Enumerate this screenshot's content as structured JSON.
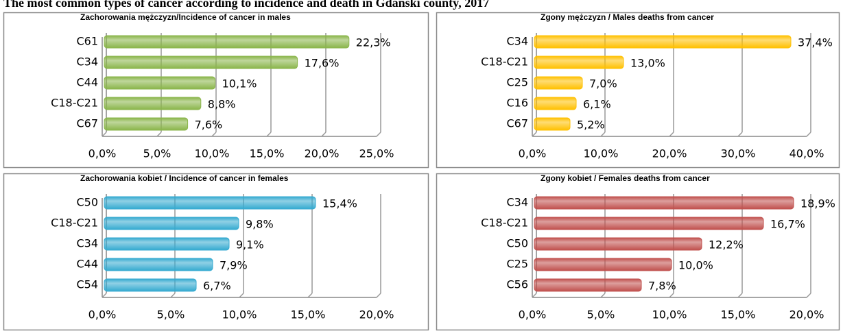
{
  "title": "The most common types of cancer according to incidence and death in Gdański county, 2017",
  "chart_data": [
    {
      "type": "bar",
      "title": "Zachorowania mężczyzn/Incidence of cancer in males",
      "categories": [
        "C61",
        "C34",
        "C44",
        "C18-C21",
        "C67"
      ],
      "values": [
        22.3,
        17.6,
        10.1,
        8.8,
        7.6
      ],
      "value_labels": [
        "22,3%",
        "17,6%",
        "10,1%",
        "8,8%",
        "7,6%"
      ],
      "color": "#8ab54a",
      "xlim": [
        0,
        25
      ],
      "xticks": [
        {
          "value": 0,
          "label": "0,0%"
        },
        {
          "value": 5,
          "label": "5,0%"
        },
        {
          "value": 10,
          "label": "10,0%"
        },
        {
          "value": 15,
          "label": "15,0%"
        },
        {
          "value": 20,
          "label": "20,0%"
        },
        {
          "value": 25,
          "label": "25,0%"
        }
      ],
      "grid": true
    },
    {
      "type": "bar",
      "title": "Zgony mężczyzn / Males deaths from cancer",
      "categories": [
        "C34",
        "C18-C21",
        "C25",
        "C16",
        "C67"
      ],
      "values": [
        37.4,
        13.0,
        7.0,
        6.1,
        5.2
      ],
      "value_labels": [
        "37,4%",
        "13,0%",
        "7,0%",
        "6,1%",
        "5,2%"
      ],
      "color": "#ffc000",
      "xlim": [
        0,
        40
      ],
      "xticks": [
        {
          "value": 0,
          "label": "0,0%"
        },
        {
          "value": 10,
          "label": "10,0%"
        },
        {
          "value": 20,
          "label": "20,0%"
        },
        {
          "value": 30,
          "label": "30,0%"
        },
        {
          "value": 40,
          "label": "40,0%"
        }
      ],
      "grid": true
    },
    {
      "type": "bar",
      "title": "Zachorowania kobiet / Incidence of cancer in females",
      "categories": [
        "C50",
        "C18-C21",
        "C34",
        "C44",
        "C54"
      ],
      "values": [
        15.4,
        9.8,
        9.1,
        7.9,
        6.7
      ],
      "value_labels": [
        "15,4%",
        "9,8%",
        "9,1%",
        "7,9%",
        "6,7%"
      ],
      "color": "#35aad0",
      "xlim": [
        0,
        20
      ],
      "xticks": [
        {
          "value": 0,
          "label": "0,0%"
        },
        {
          "value": 5,
          "label": "5,0%"
        },
        {
          "value": 10,
          "label": "10,0%"
        },
        {
          "value": 15,
          "label": "15,0%"
        },
        {
          "value": 20,
          "label": "20,0%"
        }
      ],
      "grid": true
    },
    {
      "type": "bar",
      "title": "Zgony kobiet / Females deaths from cancer",
      "categories": [
        "C34",
        "C18-C21",
        "C50",
        "C25",
        "C56"
      ],
      "values": [
        18.9,
        16.7,
        12.2,
        10.0,
        7.8
      ],
      "value_labels": [
        "18,9%",
        "16,7%",
        "12,2%",
        "10,0%",
        "7,8%"
      ],
      "color": "#c0504d",
      "xlim": [
        0,
        20
      ],
      "xticks": [
        {
          "value": 0,
          "label": "0,0%"
        },
        {
          "value": 5,
          "label": "5,0%"
        },
        {
          "value": 10,
          "label": "10,0%"
        },
        {
          "value": 15,
          "label": "15,0%"
        },
        {
          "value": 20,
          "label": "20,0%"
        }
      ],
      "grid": true
    }
  ]
}
